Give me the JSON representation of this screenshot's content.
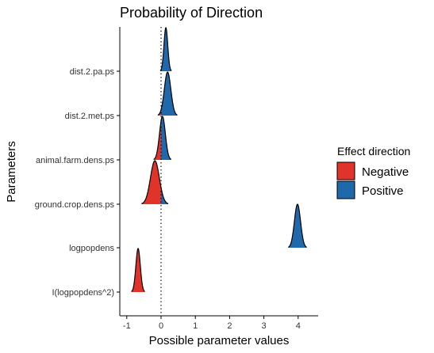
{
  "chart_data": {
    "type": "density-ridges",
    "title": "Probability of Direction",
    "xlabel": "Possible parameter values",
    "ylabel": "Parameters",
    "xlim": [
      -1.25,
      4.55
    ],
    "x_ticks": [
      -1,
      0,
      1,
      2,
      3,
      4
    ],
    "x_tick_labels": [
      "-1",
      "0",
      "1",
      "2",
      "3",
      "4"
    ],
    "reference_line": {
      "x": 0,
      "style": "dotted"
    },
    "legend": {
      "title": "Effect direction",
      "position": "right",
      "entries": [
        {
          "label": "Negative",
          "color": "#e0342b"
        },
        {
          "label": "Positive",
          "color": "#1f68ac"
        }
      ]
    },
    "series": [
      {
        "name": "dist.2.pa.ps",
        "mean": 0.14,
        "sd": 0.055
      },
      {
        "name": "dist.2.met.ps",
        "mean": 0.19,
        "sd": 0.095
      },
      {
        "name": "animal.farm.dens.ps",
        "mean": 0.04,
        "sd": 0.085
      },
      {
        "name": "ground.crop.dens.ps",
        "mean": -0.18,
        "sd": 0.13
      },
      {
        "name": "logpopdens",
        "mean": 3.98,
        "sd": 0.09
      },
      {
        "name": "I(logpopdens^2)",
        "mean": -0.67,
        "sd": 0.065
      }
    ],
    "grid": false
  },
  "colors": {
    "negative": "#e0342b",
    "positive": "#1f68ac",
    "outline": "#000000"
  }
}
